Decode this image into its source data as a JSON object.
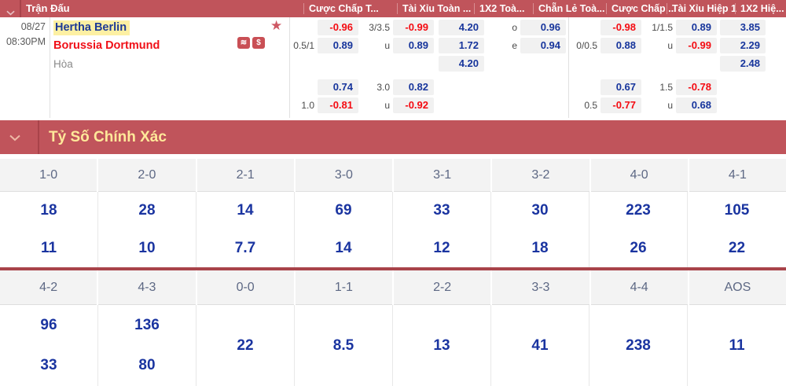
{
  "header": {
    "match_column": "Trận Đấu",
    "odds_columns": [
      "Cược Chấp T...",
      "Tài Xỉu Toàn ...",
      "1X2 Toà...",
      "Chẵn Lẻ Toà...",
      "Cược Chấp ...",
      "Tài Xỉu Hiệp 1",
      "1X2 Hiệ..."
    ]
  },
  "match": {
    "date": "08/27",
    "time": "08:30PM",
    "home_team": "Hertha Berlin",
    "away_team": "Borussia Dortmund",
    "draw_label": "Hòa",
    "icons": {
      "star": "★",
      "stream_badge": "≋",
      "dollar_badge": "$"
    }
  },
  "odds_groups": [
    {
      "id": "ft_handicap",
      "cells": [
        {
          "row": 1,
          "label": "",
          "value": "-0.96",
          "red": true
        },
        {
          "row": 2,
          "label": "0.5/1",
          "value": "0.89",
          "red": false
        },
        {
          "row": 4,
          "label": "",
          "value": "0.74",
          "red": false
        },
        {
          "row": 5,
          "label": "1.0",
          "value": "-0.81",
          "red": true
        }
      ]
    },
    {
      "id": "ft_ou",
      "cells": [
        {
          "row": 1,
          "label": "3/3.5",
          "value": "-0.99",
          "red": true
        },
        {
          "row": 2,
          "label": "u",
          "value": "0.89",
          "red": false
        },
        {
          "row": 4,
          "label": "3.0",
          "value": "0.82",
          "red": false
        },
        {
          "row": 5,
          "label": "u",
          "value": "-0.92",
          "red": true
        }
      ]
    },
    {
      "id": "ft_1x2",
      "cells": [
        {
          "row": 1,
          "label": "",
          "value": "4.20",
          "red": false
        },
        {
          "row": 2,
          "label": "",
          "value": "1.72",
          "red": false
        },
        {
          "row": 3,
          "label": "",
          "value": "4.20",
          "red": false
        }
      ]
    },
    {
      "id": "ft_oe",
      "cells": [
        {
          "row": 1,
          "label": "o",
          "value": "0.96",
          "red": false
        },
        {
          "row": 2,
          "label": "e",
          "value": "0.94",
          "red": false
        }
      ]
    },
    {
      "id": "h1_handicap",
      "cells": [
        {
          "row": 1,
          "label": "",
          "value": "-0.98",
          "red": true
        },
        {
          "row": 2,
          "label": "0/0.5",
          "value": "0.88",
          "red": false
        },
        {
          "row": 4,
          "label": "",
          "value": "0.67",
          "red": false
        },
        {
          "row": 5,
          "label": "0.5",
          "value": "-0.77",
          "red": true
        }
      ]
    },
    {
      "id": "h1_ou",
      "cells": [
        {
          "row": 1,
          "label": "1/1.5",
          "value": "0.89",
          "red": false
        },
        {
          "row": 2,
          "label": "u",
          "value": "-0.99",
          "red": true
        },
        {
          "row": 4,
          "label": "1.5",
          "value": "-0.78",
          "red": true
        },
        {
          "row": 5,
          "label": "u",
          "value": "0.68",
          "red": false
        }
      ]
    },
    {
      "id": "h1_1x2",
      "cells": [
        {
          "row": 1,
          "label": "",
          "value": "3.85",
          "red": false
        },
        {
          "row": 2,
          "label": "",
          "value": "2.29",
          "red": false
        },
        {
          "row": 3,
          "label": "",
          "value": "2.48",
          "red": false
        }
      ]
    }
  ],
  "banner": {
    "title": "Tỷ Số Chính Xác"
  },
  "score_blocks": [
    {
      "columns": [
        {
          "score": "1-0",
          "odds": [
            "18",
            "11"
          ]
        },
        {
          "score": "2-0",
          "odds": [
            "28",
            "10"
          ]
        },
        {
          "score": "2-1",
          "odds": [
            "14",
            "7.7"
          ]
        },
        {
          "score": "3-0",
          "odds": [
            "69",
            "14"
          ]
        },
        {
          "score": "3-1",
          "odds": [
            "33",
            "12"
          ]
        },
        {
          "score": "3-2",
          "odds": [
            "30",
            "18"
          ]
        },
        {
          "score": "4-0",
          "odds": [
            "223",
            "26"
          ]
        },
        {
          "score": "4-1",
          "odds": [
            "105",
            "22"
          ]
        }
      ]
    },
    {
      "columns": [
        {
          "score": "4-2",
          "odds": [
            "96",
            "33"
          ]
        },
        {
          "score": "4-3",
          "odds": [
            "136",
            "80"
          ]
        },
        {
          "score": "0-0",
          "odds": [
            "22"
          ]
        },
        {
          "score": "1-1",
          "odds": [
            "8.5"
          ]
        },
        {
          "score": "2-2",
          "odds": [
            "13"
          ]
        },
        {
          "score": "3-3",
          "odds": [
            "41"
          ]
        },
        {
          "score": "4-4",
          "odds": [
            "238"
          ]
        },
        {
          "score": "AOS",
          "odds": [
            "11"
          ]
        }
      ]
    }
  ],
  "colors": {
    "accent_red": "#c0545b",
    "divider_red": "#a8434a",
    "odds_blue": "#17359c",
    "odds_red": "#f40b12",
    "banner_text": "#ffe99a",
    "home_highlight": "#fdf0a3",
    "home_text": "#1d3a96",
    "away_text": "#f01018"
  }
}
